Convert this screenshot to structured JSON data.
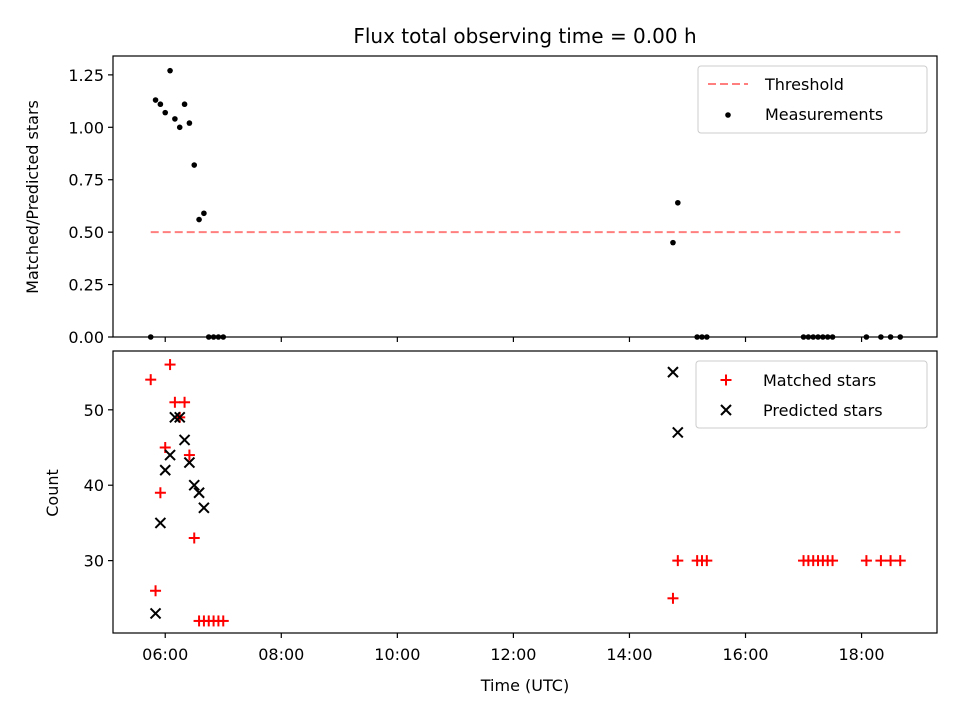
{
  "chart_data": [
    {
      "type": "scatter",
      "title": "Flux total observing time = 0.00 h",
      "xlabel": "",
      "ylabel": "Matched/Predicted stars",
      "xlim": [
        "05:06",
        "19:18"
      ],
      "ylim": [
        0,
        1.34
      ],
      "yticks": [
        0.0,
        0.25,
        0.5,
        0.75,
        1.0,
        1.25
      ],
      "ytick_labels": [
        "0.00",
        "0.25",
        "0.50",
        "0.75",
        "1.00",
        "1.25"
      ],
      "legend": {
        "position": "top-right",
        "entries": [
          {
            "label": "Threshold",
            "kind": "dashed-line",
            "color": "#ff7f7f"
          },
          {
            "label": "Measurements",
            "kind": "dot",
            "color": "#000000"
          }
        ]
      },
      "threshold": {
        "value": 0.5,
        "x_start": "05:45",
        "x_end": "18:40",
        "color": "#ff7f7f"
      },
      "series": [
        {
          "name": "Measurements",
          "color": "#000000",
          "points": [
            [
              "05:45",
              0.0
            ],
            [
              "05:50",
              1.13
            ],
            [
              "05:55",
              1.11
            ],
            [
              "06:00",
              1.07
            ],
            [
              "06:05",
              1.27
            ],
            [
              "06:10",
              1.04
            ],
            [
              "06:15",
              1.0
            ],
            [
              "06:20",
              1.11
            ],
            [
              "06:25",
              1.02
            ],
            [
              "06:30",
              0.82
            ],
            [
              "06:35",
              0.56
            ],
            [
              "06:40",
              0.59
            ],
            [
              "06:45",
              0.0
            ],
            [
              "06:50",
              0.0
            ],
            [
              "06:55",
              0.0
            ],
            [
              "07:00",
              0.0
            ],
            [
              "14:45",
              0.45
            ],
            [
              "14:50",
              0.64
            ],
            [
              "15:10",
              0.0
            ],
            [
              "15:15",
              0.0
            ],
            [
              "15:20",
              0.0
            ],
            [
              "17:00",
              0.0
            ],
            [
              "17:05",
              0.0
            ],
            [
              "17:10",
              0.0
            ],
            [
              "17:15",
              0.0
            ],
            [
              "17:20",
              0.0
            ],
            [
              "17:25",
              0.0
            ],
            [
              "17:30",
              0.0
            ],
            [
              "18:05",
              0.0
            ],
            [
              "18:20",
              0.0
            ],
            [
              "18:30",
              0.0
            ],
            [
              "18:40",
              0.0
            ]
          ]
        }
      ]
    },
    {
      "type": "scatter",
      "title": "",
      "xlabel": "Time (UTC)",
      "ylabel": "Count",
      "xlim": [
        "05:06",
        "19:18"
      ],
      "ylim": [
        20.4,
        57.8
      ],
      "xticks": [
        "06:00",
        "08:00",
        "10:00",
        "12:00",
        "14:00",
        "16:00",
        "18:00"
      ],
      "yticks": [
        30,
        40,
        50
      ],
      "ytick_labels": [
        "30",
        "40",
        "50"
      ],
      "legend": {
        "position": "top-right",
        "entries": [
          {
            "label": "Matched stars",
            "kind": "plus",
            "color": "#ff0000"
          },
          {
            "label": "Predicted stars",
            "kind": "x",
            "color": "#000000"
          }
        ]
      },
      "series": [
        {
          "name": "Matched stars",
          "color": "#ff0000",
          "marker": "plus",
          "points": [
            [
              "05:45",
              54
            ],
            [
              "05:50",
              26
            ],
            [
              "05:55",
              39
            ],
            [
              "06:00",
              45
            ],
            [
              "06:05",
              56
            ],
            [
              "06:10",
              51
            ],
            [
              "06:15",
              49
            ],
            [
              "06:20",
              51
            ],
            [
              "06:25",
              44
            ],
            [
              "06:30",
              33
            ],
            [
              "06:35",
              22
            ],
            [
              "06:40",
              22
            ],
            [
              "06:45",
              22
            ],
            [
              "06:50",
              22
            ],
            [
              "06:55",
              22
            ],
            [
              "07:00",
              22
            ],
            [
              "14:45",
              25
            ],
            [
              "14:50",
              30
            ],
            [
              "15:10",
              30
            ],
            [
              "15:15",
              30
            ],
            [
              "15:20",
              30
            ],
            [
              "17:00",
              30
            ],
            [
              "17:05",
              30
            ],
            [
              "17:10",
              30
            ],
            [
              "17:15",
              30
            ],
            [
              "17:20",
              30
            ],
            [
              "17:25",
              30
            ],
            [
              "17:30",
              30
            ],
            [
              "18:05",
              30
            ],
            [
              "18:20",
              30
            ],
            [
              "18:30",
              30
            ],
            [
              "18:40",
              30
            ]
          ]
        },
        {
          "name": "Predicted stars",
          "color": "#000000",
          "marker": "x",
          "points": [
            [
              "05:50",
              23
            ],
            [
              "05:55",
              35
            ],
            [
              "06:00",
              42
            ],
            [
              "06:05",
              44
            ],
            [
              "06:10",
              49
            ],
            [
              "06:15",
              49
            ],
            [
              "06:20",
              46
            ],
            [
              "06:25",
              43
            ],
            [
              "06:30",
              40
            ],
            [
              "06:35",
              39
            ],
            [
              "06:40",
              37
            ],
            [
              "14:45",
              55
            ],
            [
              "14:50",
              47
            ]
          ]
        }
      ]
    }
  ]
}
